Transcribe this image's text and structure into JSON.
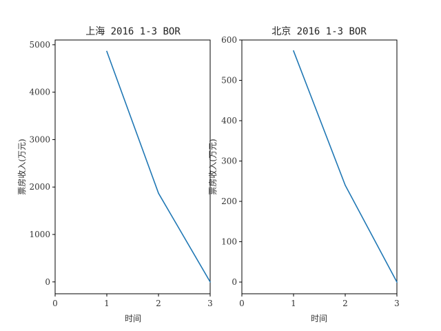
{
  "chart_data": [
    {
      "type": "line",
      "title": "上海 2016 1-3 BOR",
      "xlabel": "时间",
      "ylabel": "票房收入(万元)",
      "xlim": [
        0,
        3
      ],
      "ylim": [
        -250,
        5100
      ],
      "xticks": [
        0,
        1,
        2,
        3
      ],
      "yticks": [
        0,
        1000,
        2000,
        3000,
        4000,
        5000
      ],
      "grid": false,
      "color": "#1f77b4",
      "series": [
        {
          "x": [
            1,
            2,
            3
          ],
          "values": [
            4860,
            1870,
            0
          ]
        }
      ]
    },
    {
      "type": "line",
      "title": "北京 2016 1-3 BOR",
      "xlabel": "时间",
      "ylabel": "票房收入(万元)",
      "xlim": [
        0,
        3
      ],
      "ylim": [
        -29,
        600
      ],
      "xticks": [
        0,
        1,
        2,
        3
      ],
      "yticks": [
        0,
        100,
        200,
        300,
        400,
        500,
        600
      ],
      "grid": false,
      "color": "#1f77b4",
      "series": [
        {
          "x": [
            1,
            2,
            3
          ],
          "values": [
            573,
            240,
            0
          ]
        }
      ]
    }
  ]
}
